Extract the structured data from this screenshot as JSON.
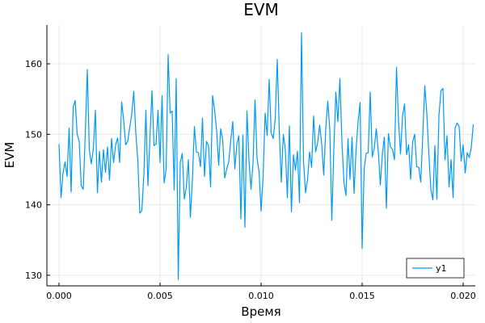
{
  "chart_data": {
    "type": "line",
    "title": "EVM",
    "xlabel": "Время",
    "ylabel": "EVM",
    "xlim": [
      -0.0006,
      0.0206
    ],
    "ylim": [
      128.5,
      165.5
    ],
    "xticks": [
      0.0,
      0.005,
      0.01,
      0.015,
      0.02
    ],
    "xtick_labels": [
      "0.000",
      "0.005",
      "0.010",
      "0.015",
      "0.020"
    ],
    "yticks": [
      130,
      140,
      150,
      160
    ],
    "ytick_labels": [
      "130",
      "140",
      "150",
      "160"
    ],
    "grid": true,
    "legend_position": "bottom-right",
    "series": [
      {
        "name": "y1",
        "color": "#009af9",
        "x_start": 0.0,
        "x_step": 0.0001,
        "values": [
          148.6,
          141.0,
          144.5,
          146.1,
          144.0,
          150.9,
          141.8,
          153.8,
          154.8,
          150.0,
          149.0,
          142.7,
          142.2,
          150.0,
          159.2,
          147.8,
          145.8,
          148.0,
          153.4,
          141.7,
          147.6,
          143.2,
          147.8,
          144.6,
          148.2,
          143.5,
          149.4,
          146.0,
          148.5,
          149.5,
          146.0,
          154.6,
          152.0,
          148.5,
          149.0,
          151.0,
          152.9,
          156.1,
          150.2,
          146.3,
          138.8,
          139.2,
          144.3,
          153.4,
          142.7,
          149.5,
          156.2,
          148.4,
          148.6,
          153.4,
          146.0,
          155.5,
          143.1,
          145.0,
          161.3,
          153.0,
          153.3,
          142.1,
          157.9,
          129.4,
          146.0,
          147.3,
          140.8,
          142.5,
          146.4,
          138.2,
          143.5,
          151.1,
          147.5,
          147.4,
          145.4,
          152.3,
          144.0,
          149.0,
          148.4,
          142.5,
          155.5,
          153.4,
          150.5,
          145.6,
          150.8,
          149.2,
          143.8,
          145.1,
          146.1,
          149.2,
          151.8,
          145.1,
          148.6,
          149.8,
          138.0,
          149.9,
          136.8,
          153.3,
          146.4,
          142.2,
          145.9,
          154.9,
          146.6,
          144.7,
          139.1,
          144.0,
          153.0,
          149.8,
          157.8,
          150.2,
          149.4,
          152.2,
          160.6,
          150.5,
          143.2,
          150.0,
          147.9,
          141.0,
          151.2,
          139.0,
          147.1,
          144.9,
          147.6,
          140.3,
          164.4,
          146.2,
          141.7,
          143.6,
          147.5,
          145.3,
          152.6,
          147.5,
          148.8,
          151.3,
          148.6,
          144.2,
          150.8,
          154.7,
          150.7,
          137.8,
          147.9,
          156.0,
          151.8,
          157.9,
          149.0,
          143.2,
          141.3,
          149.4,
          143.6,
          149.6,
          141.6,
          147.8,
          151.8,
          154.5,
          133.8,
          145.1,
          147.3,
          147.4,
          156.0,
          146.8,
          148.0,
          150.8,
          147.6,
          142.8,
          147.2,
          149.6,
          139.5,
          150.1,
          148.2,
          147.9,
          146.4,
          159.5,
          151.9,
          147.2,
          152.6,
          154.3,
          147.1,
          148.5,
          143.6,
          148.9,
          150.0,
          145.4,
          145.3,
          143.2,
          149.8,
          156.9,
          153.0,
          147.3,
          142.2,
          140.7,
          148.4,
          140.8,
          152.6,
          156.2,
          156.5,
          146.4,
          149.8,
          142.5,
          146.4,
          141.0,
          150.9,
          151.6,
          151.1,
          146.2,
          148.5,
          144.5,
          147.4,
          146.7,
          148.1,
          151.4
        ]
      }
    ]
  }
}
